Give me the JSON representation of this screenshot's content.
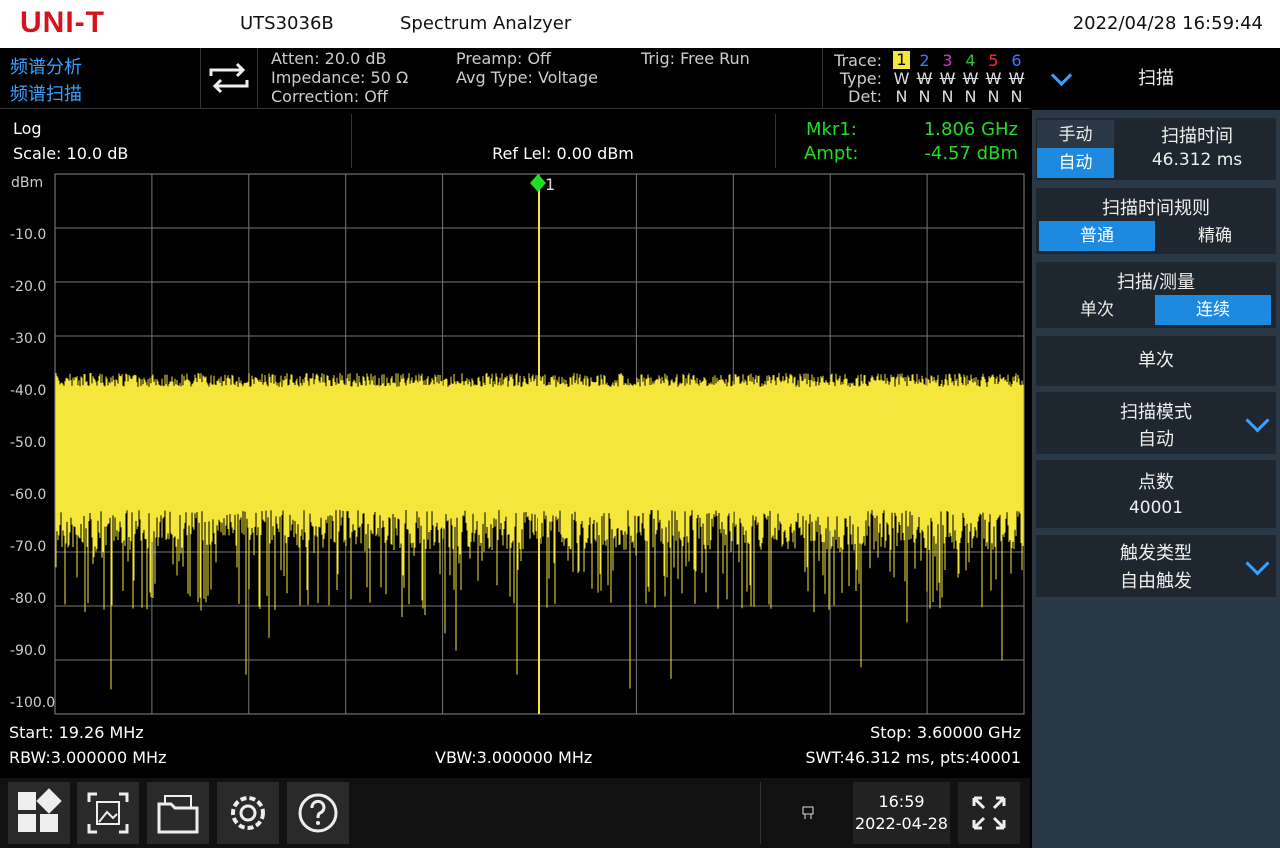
{
  "header": {
    "logo": "UNI-T",
    "model": "UTS3036B",
    "app": "Spectrum Analzyer",
    "datetime": "2022/04/28 16:59:44"
  },
  "status": {
    "mode": "频谱分析",
    "submode": "频谱扫描",
    "atten": "Atten: 20.0 dB",
    "impedance": "Impedance: 50 Ω",
    "correction": "Correction: Off",
    "preamp": "Preamp: Off",
    "avg_type": "Avg Type: Voltage",
    "trig": "Trig: Free Run",
    "trace_label": "Trace:",
    "type_label": "Type:",
    "det_label": "Det:",
    "traces": [
      "1",
      "2",
      "3",
      "4",
      "5",
      "6"
    ],
    "types": [
      "W",
      "W",
      "W",
      "W",
      "W",
      "W"
    ],
    "dets": [
      "N",
      "N",
      "N",
      "N",
      "N",
      "N"
    ]
  },
  "scale": {
    "mode": "Log",
    "scale": "Scale: 10.0 dB",
    "ref": "Ref Lel: 0.00 dBm",
    "marker_label": "Mkr1:",
    "marker_freq": "1.806 GHz",
    "ampt_label": "Ampt:",
    "ampt": "-4.57 dBm"
  },
  "plot": {
    "unit": "dBm",
    "y_labels": [
      "-10.0",
      "-20.0",
      "-30.0",
      "-40.0",
      "-50.0",
      "-60.0",
      "-70.0",
      "-80.0",
      "-90.0",
      "-100.0"
    ],
    "marker": "1"
  },
  "footer": {
    "start": "Start: 19.26 MHz",
    "stop": "Stop: 3.60000 GHz",
    "rbw": "RBW:3.000000 MHz",
    "vbw": "VBW:3.000000 MHz",
    "swt": "SWT:46.312 ms, pts:40001"
  },
  "toolbar": {
    "time": "16:59",
    "date": "2022-04-28"
  },
  "menu": {
    "title": "扫描",
    "sweep_time": {
      "options": [
        "手动",
        "自动"
      ],
      "label": "扫描时间",
      "value": "46.312 ms"
    },
    "sweep_rule": {
      "label": "扫描时间规则",
      "options": [
        "普通",
        "精确"
      ]
    },
    "sweep_measure": {
      "label": "扫描/测量",
      "options": [
        "单次",
        "连续"
      ]
    },
    "single": {
      "label": "单次"
    },
    "sweep_mode": {
      "label": "扫描模式",
      "value": "自动"
    },
    "points": {
      "label": "点数",
      "value": "40001"
    },
    "trigger": {
      "label": "触发类型",
      "value": "自由触发"
    }
  }
}
